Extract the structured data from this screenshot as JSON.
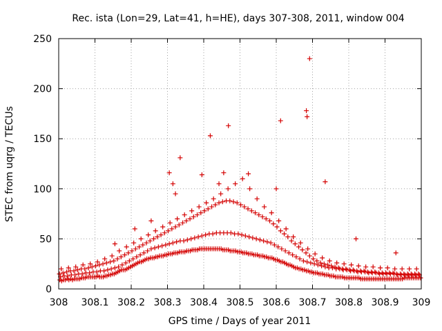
{
  "chart_data": {
    "type": "scatter",
    "title": "Rec. ista (Lon=29, Lat=41, h=HE), days 307-308, 2011, window 004",
    "xlabel": "GPS time / Days of year 2011",
    "ylabel": "STEC from uqrg / TECUs",
    "xlim": [
      308,
      309
    ],
    "ylim": [
      0,
      250
    ],
    "xticks": [
      "308",
      "308.1",
      "308.2",
      "308.3",
      "308.4",
      "308.5",
      "308.6",
      "308.7",
      "308.8",
      "308.9",
      "309"
    ],
    "yticks": [
      "0",
      "50",
      "100",
      "150",
      "200",
      "250"
    ],
    "grid": true,
    "marker": "+",
    "marker_color": "#d40000",
    "series": [
      {
        "x": [
          308.003,
          308.008,
          308.013,
          308.018,
          308.023,
          308.028,
          308.033,
          308.038,
          308.043,
          308.048,
          308.053,
          308.058,
          308.063,
          308.068,
          308.073,
          308.078,
          308.083,
          308.088,
          308.093,
          308.098,
          308.103,
          308.108,
          308.113,
          308.118,
          308.123,
          308.128,
          308.133,
          308.138,
          308.143,
          308.148,
          308.153,
          308.158,
          308.163,
          308.168,
          308.173,
          308.178,
          308.183,
          308.188,
          308.193,
          308.198,
          308.203,
          308.208,
          308.213,
          308.218,
          308.223,
          308.228,
          308.233,
          308.238,
          308.243,
          308.248,
          308.253,
          308.258,
          308.263,
          308.268,
          308.273,
          308.278,
          308.283,
          308.288,
          308.293,
          308.298,
          308.303,
          308.308,
          308.313,
          308.318,
          308.323,
          308.328,
          308.333,
          308.338,
          308.343,
          308.348,
          308.353,
          308.358,
          308.363,
          308.368,
          308.373,
          308.378,
          308.383,
          308.388,
          308.393,
          308.398,
          308.403,
          308.408,
          308.413,
          308.418,
          308.423,
          308.428,
          308.433,
          308.438,
          308.443,
          308.448,
          308.453,
          308.458,
          308.463,
          308.468,
          308.473,
          308.478,
          308.483,
          308.488,
          308.493,
          308.498,
          308.503,
          308.508,
          308.513,
          308.518,
          308.523,
          308.528,
          308.533,
          308.538,
          308.543,
          308.548,
          308.553,
          308.558,
          308.563,
          308.568,
          308.573,
          308.578,
          308.583,
          308.588,
          308.593,
          308.598,
          308.603,
          308.608,
          308.613,
          308.618,
          308.623,
          308.628,
          308.633,
          308.638,
          308.643,
          308.648,
          308.653,
          308.658,
          308.663,
          308.668,
          308.673,
          308.678,
          308.683,
          308.688,
          308.693,
          308.698,
          308.703,
          308.708,
          308.713,
          308.718,
          308.723,
          308.728,
          308.733,
          308.738,
          308.743,
          308.748,
          308.753,
          308.758,
          308.763,
          308.768,
          308.773,
          308.778,
          308.783,
          308.788,
          308.793,
          308.798,
          308.803,
          308.808,
          308.813,
          308.818,
          308.823,
          308.828,
          308.833,
          308.838,
          308.843,
          308.848,
          308.853,
          308.858,
          308.863,
          308.868,
          308.873,
          308.878,
          308.883,
          308.888,
          308.893,
          308.898,
          308.903,
          308.908,
          308.913,
          308.918,
          308.923,
          308.928,
          308.933,
          308.938,
          308.943,
          308.948,
          308.953,
          308.958,
          308.963,
          308.968,
          308.973,
          308.978,
          308.983,
          308.988,
          308.993,
          308.998
        ],
        "y": [
          9,
          8,
          9,
          9,
          10,
          9,
          10,
          9,
          10,
          10,
          10,
          10,
          11,
          11,
          11,
          12,
          12,
          12,
          12,
          12,
          12,
          13,
          12,
          12,
          12,
          13,
          13,
          14,
          14,
          15,
          15,
          16,
          17,
          18,
          19,
          19,
          19,
          20,
          21,
          22,
          23,
          24,
          25,
          26,
          27,
          27,
          28,
          29,
          30,
          30,
          31,
          31,
          31,
          32,
          32,
          33,
          33,
          33,
          34,
          34,
          35,
          35,
          35,
          36,
          36,
          36,
          37,
          37,
          37,
          37,
          38,
          38,
          38,
          39,
          39,
          39,
          39,
          40,
          40,
          40,
          40,
          40,
          40,
          40,
          40,
          40,
          40,
          40,
          40,
          40,
          39,
          39,
          39,
          39,
          38,
          38,
          38,
          38,
          37,
          37,
          37,
          36,
          36,
          36,
          35,
          35,
          35,
          34,
          34,
          34,
          33,
          33,
          33,
          32,
          32,
          31,
          31,
          31,
          30,
          29,
          29,
          28,
          27,
          27,
          26,
          25,
          24,
          24,
          23,
          22,
          21,
          21,
          20,
          20,
          19,
          19,
          18,
          18,
          17,
          17,
          16,
          16,
          16,
          15,
          15,
          15,
          14,
          14,
          14,
          13,
          13,
          13,
          12,
          12,
          12,
          12,
          12,
          11,
          11,
          11,
          11,
          11,
          11,
          11,
          11,
          11,
          10,
          10,
          10,
          10,
          10,
          10,
          10,
          10,
          10,
          10,
          10,
          10,
          10,
          10,
          10,
          10,
          10,
          10,
          10,
          10,
          10,
          10,
          10,
          10,
          11,
          11,
          11,
          11,
          11,
          11,
          11,
          11,
          11,
          11
        ]
      },
      {
        "x": [
          308.005,
          308.015,
          308.025,
          308.035,
          308.045,
          308.055,
          308.065,
          308.075,
          308.085,
          308.095,
          308.105,
          308.115,
          308.125,
          308.135,
          308.145,
          308.155,
          308.165,
          308.175,
          308.185,
          308.195,
          308.205,
          308.215,
          308.225,
          308.235,
          308.245,
          308.255,
          308.265,
          308.275,
          308.285,
          308.295,
          308.305,
          308.315,
          308.325,
          308.335,
          308.345,
          308.355,
          308.365,
          308.375,
          308.385,
          308.395,
          308.405,
          308.415,
          308.425,
          308.435,
          308.445,
          308.455,
          308.465,
          308.475,
          308.485,
          308.495,
          308.505,
          308.515,
          308.525,
          308.535,
          308.545,
          308.555,
          308.565,
          308.575,
          308.585,
          308.595,
          308.605,
          308.615,
          308.625,
          308.635,
          308.645,
          308.655,
          308.665,
          308.675,
          308.685,
          308.695,
          308.705,
          308.715,
          308.725,
          308.735,
          308.745,
          308.755,
          308.765,
          308.775,
          308.785,
          308.795,
          308.805,
          308.815,
          308.825,
          308.835,
          308.845,
          308.855,
          308.865,
          308.875,
          308.885,
          308.895,
          308.905,
          308.915,
          308.925,
          308.935,
          308.945,
          308.955,
          308.965,
          308.975,
          308.985,
          308.995
        ],
        "y": [
          12,
          13,
          13,
          14,
          14,
          15,
          15,
          16,
          16,
          17,
          17,
          18,
          18,
          19,
          20,
          21,
          22,
          24,
          26,
          28,
          30,
          32,
          34,
          36,
          38,
          40,
          41,
          42,
          43,
          44,
          45,
          46,
          47,
          48,
          48,
          49,
          50,
          51,
          52,
          53,
          54,
          55,
          55,
          56,
          56,
          56,
          56,
          56,
          55,
          55,
          54,
          53,
          52,
          51,
          50,
          49,
          48,
          47,
          46,
          44,
          42,
          40,
          38,
          36,
          34,
          32,
          30,
          28,
          27,
          26,
          25,
          24,
          23,
          22,
          21,
          21,
          20,
          20,
          19,
          19,
          18,
          18,
          17,
          17,
          17,
          16,
          16,
          16,
          15,
          15,
          15,
          15,
          15,
          14,
          14,
          14,
          14,
          14,
          14,
          14
        ]
      },
      {
        "x": [
          308.002,
          308.012,
          308.022,
          308.032,
          308.042,
          308.052,
          308.062,
          308.072,
          308.082,
          308.092,
          308.102,
          308.112,
          308.122,
          308.132,
          308.142,
          308.152,
          308.162,
          308.172,
          308.182,
          308.192,
          308.202,
          308.212,
          308.222,
          308.232,
          308.242,
          308.252,
          308.262,
          308.272,
          308.282,
          308.292,
          308.302,
          308.312,
          308.322,
          308.332,
          308.342,
          308.352,
          308.362,
          308.372,
          308.382,
          308.392,
          308.402,
          308.412,
          308.422,
          308.432,
          308.442,
          308.452,
          308.462,
          308.472,
          308.482,
          308.492,
          308.502,
          308.512,
          308.522,
          308.532,
          308.542,
          308.552,
          308.562,
          308.572,
          308.582,
          308.592,
          308.602,
          308.612,
          308.622,
          308.632,
          308.642,
          308.652,
          308.662,
          308.672,
          308.682,
          308.692,
          308.702,
          308.712,
          308.722,
          308.732,
          308.742,
          308.752,
          308.762,
          308.772,
          308.782,
          308.792,
          308.802,
          308.812,
          308.822,
          308.832,
          308.842,
          308.852,
          308.862,
          308.872,
          308.882,
          308.892,
          308.902,
          308.912,
          308.922,
          308.932,
          308.942,
          308.952,
          308.962,
          308.972,
          308.982,
          308.992
        ],
        "y": [
          15,
          16,
          17,
          18,
          18,
          19,
          20,
          20,
          21,
          22,
          23,
          24,
          25,
          26,
          27,
          28,
          30,
          32,
          34,
          36,
          38,
          40,
          42,
          44,
          46,
          48,
          50,
          52,
          54,
          56,
          58,
          60,
          62,
          64,
          66,
          68,
          70,
          72,
          74,
          76,
          78,
          80,
          82,
          84,
          86,
          87,
          88,
          88,
          87,
          86,
          84,
          82,
          80,
          78,
          76,
          74,
          72,
          70,
          68,
          65,
          62,
          58,
          55,
          52,
          48,
          45,
          42,
          39,
          36,
          33,
          30,
          28,
          26,
          25,
          24,
          23,
          22,
          21,
          20,
          20,
          19,
          19,
          18,
          18,
          18,
          17,
          17,
          17,
          16,
          16,
          16,
          16,
          16,
          15,
          15,
          15,
          15,
          15,
          15,
          15
        ]
      },
      {
        "x": [
          308.007,
          308.027,
          308.047,
          308.067,
          308.087,
          308.107,
          308.127,
          308.147,
          308.167,
          308.187,
          308.207,
          308.227,
          308.247,
          308.267,
          308.287,
          308.307,
          308.327,
          308.347,
          308.367,
          308.387,
          308.407,
          308.427,
          308.447,
          308.467,
          308.487,
          308.507,
          308.527,
          308.547,
          308.567,
          308.587,
          308.607,
          308.627,
          308.647,
          308.667,
          308.687,
          308.707,
          308.727,
          308.747,
          308.767,
          308.787,
          308.807,
          308.827,
          308.847,
          308.867,
          308.887,
          308.907,
          308.927,
          308.947,
          308.967,
          308.987
        ],
        "y": [
          20,
          21,
          22,
          24,
          25,
          27,
          30,
          33,
          38,
          42,
          46,
          50,
          54,
          58,
          62,
          66,
          70,
          74,
          78,
          82,
          86,
          90,
          95,
          100,
          105,
          110,
          100,
          90,
          82,
          76,
          68,
          60,
          52,
          46,
          40,
          35,
          31,
          28,
          26,
          25,
          24,
          23,
          22,
          22,
          21,
          21,
          20,
          20,
          20,
          20
        ]
      },
      {
        "x": [
          308.155,
          308.21,
          308.255,
          308.305,
          308.315,
          308.335,
          308.322,
          308.395,
          308.418,
          308.442,
          308.455,
          308.468,
          308.523,
          308.6,
          308.612,
          308.683,
          308.692,
          308.685,
          308.735,
          308.82,
          308.93
        ],
        "y": [
          45,
          60,
          68,
          116,
          105,
          131,
          95,
          114,
          153,
          105,
          116,
          163,
          115,
          100,
          168,
          178,
          230,
          172,
          107,
          50,
          36
        ]
      }
    ]
  }
}
